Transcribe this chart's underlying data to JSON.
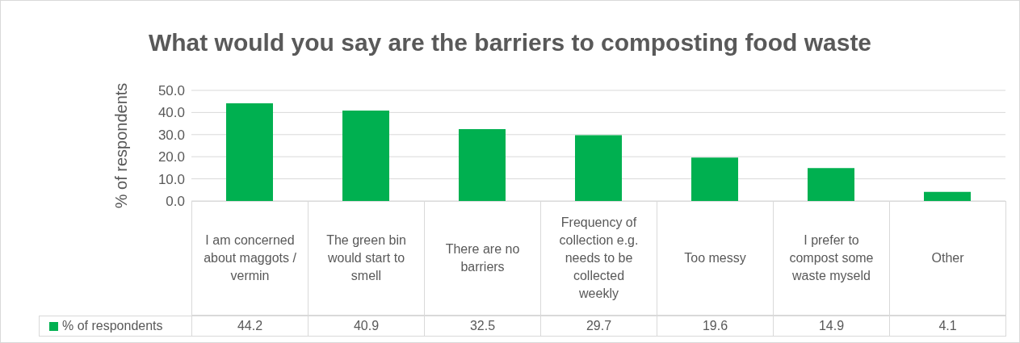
{
  "chart_data": {
    "type": "bar",
    "title": "What would you say are the barriers to composting food waste",
    "ylabel": "% of respondents",
    "categories": [
      "I am concerned about maggots / vermin",
      "The green bin would start to smell",
      "There are no barriers",
      "Frequency of collection e.g. needs to be collected weekly",
      "Too messy",
      "I prefer to compost some waste myseld",
      "Other"
    ],
    "series": [
      {
        "name": "% of respondents",
        "color": "#00b050",
        "values": [
          44.2,
          40.9,
          32.5,
          29.7,
          19.6,
          14.9,
          4.1
        ]
      }
    ],
    "ylim": [
      0,
      50
    ],
    "yticks": [
      {
        "value": 0,
        "label": "0.0"
      },
      {
        "value": 10,
        "label": "10.0"
      },
      {
        "value": 20,
        "label": "20.0"
      },
      {
        "value": 30,
        "label": "30.0"
      },
      {
        "value": 40,
        "label": "40.0"
      },
      {
        "value": 50,
        "label": "50.0"
      }
    ],
    "grid": "y",
    "legend": "bottom",
    "data_labels": true
  }
}
